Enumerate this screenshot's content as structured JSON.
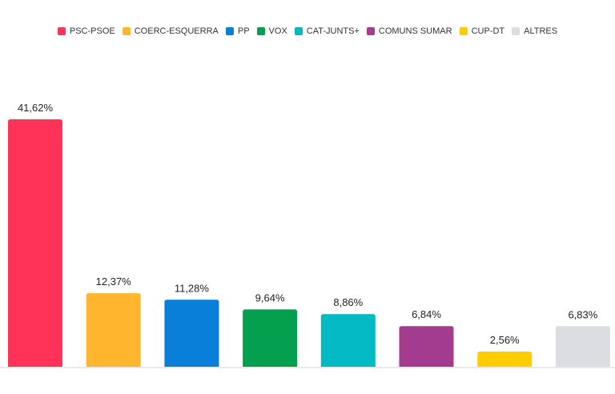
{
  "chart_data": {
    "type": "bar",
    "title": "",
    "xlabel": "",
    "ylabel": "",
    "ylim": [
      0,
      41.62
    ],
    "grid": false,
    "legend_position": "top-center",
    "categories": [
      "PSC-PSOE",
      "COERC-ESQUERRA",
      "PP",
      "VOX",
      "CAT-JUNTS+",
      "COMUNS SUMAR",
      "CUP-DT",
      "ALTRES"
    ],
    "values": [
      41.62,
      12.37,
      11.28,
      9.64,
      8.86,
      6.84,
      2.56,
      6.83
    ],
    "value_labels": [
      "41,62%",
      "12,37%",
      "11,28%",
      "9,64%",
      "8,86%",
      "6,84%",
      "2,56%",
      "6,83%"
    ],
    "colors": [
      "#ff3358",
      "#ffb62e",
      "#0a7fd9",
      "#05a04f",
      "#03b9c3",
      "#a33b8f",
      "#ffcc00",
      "#dcdde3"
    ]
  }
}
